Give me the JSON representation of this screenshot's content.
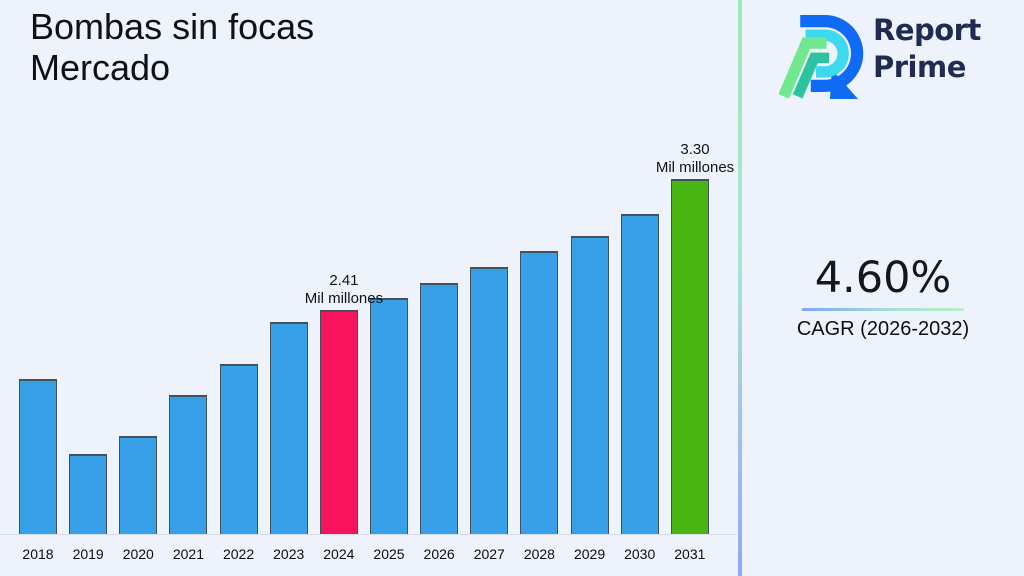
{
  "title": {
    "line1": "Bombas sin focas",
    "line2": "Mercado"
  },
  "logo": {
    "icon": "report-prime-logo",
    "line1": "Report",
    "line2": "Prime",
    "text_color": "#1f2b52",
    "mark_colors": {
      "outer_blue": "#0f6bf5",
      "inner_cyan": "#3fd9ef",
      "light_green": "#6fe890",
      "teal": "#2cc49e"
    }
  },
  "stats": {
    "cagr_value": "4.60%",
    "cagr_label": "CAGR (2026-2032)"
  },
  "colors": {
    "background": "#edf2fb",
    "divider_top": "#9fe9b2",
    "divider_bottom": "#8fa9f8",
    "underline_left": "#7ea6f2",
    "underline_right": "#b7f0c4"
  },
  "chart_data": {
    "type": "bar",
    "title": "Bombas sin focas Mercado",
    "categories": [
      "2018",
      "2019",
      "2020",
      "2021",
      "2022",
      "2023",
      "2024",
      "2025",
      "2026",
      "2027",
      "2028",
      "2029",
      "2030",
      "2031"
    ],
    "values": [
      1.94,
      1.43,
      1.55,
      1.83,
      2.04,
      2.33,
      2.41,
      2.49,
      2.59,
      2.7,
      2.81,
      2.91,
      3.06,
      3.3
    ],
    "unit": "Mil millones",
    "xlabel": "",
    "ylabel": "",
    "ylim": [
      0.88,
      3.45
    ],
    "grid": false,
    "legend": false,
    "axis_hidden": true,
    "bar_colors": {
      "default": "#38a0e8",
      "2024": "#f8155e",
      "2031": "#49b512"
    },
    "annotations": [
      {
        "category": "2024",
        "lines": [
          "2.41",
          "Mil millones"
        ]
      },
      {
        "category": "2031",
        "lines": [
          "3.30",
          "Mil millones"
        ]
      }
    ]
  }
}
